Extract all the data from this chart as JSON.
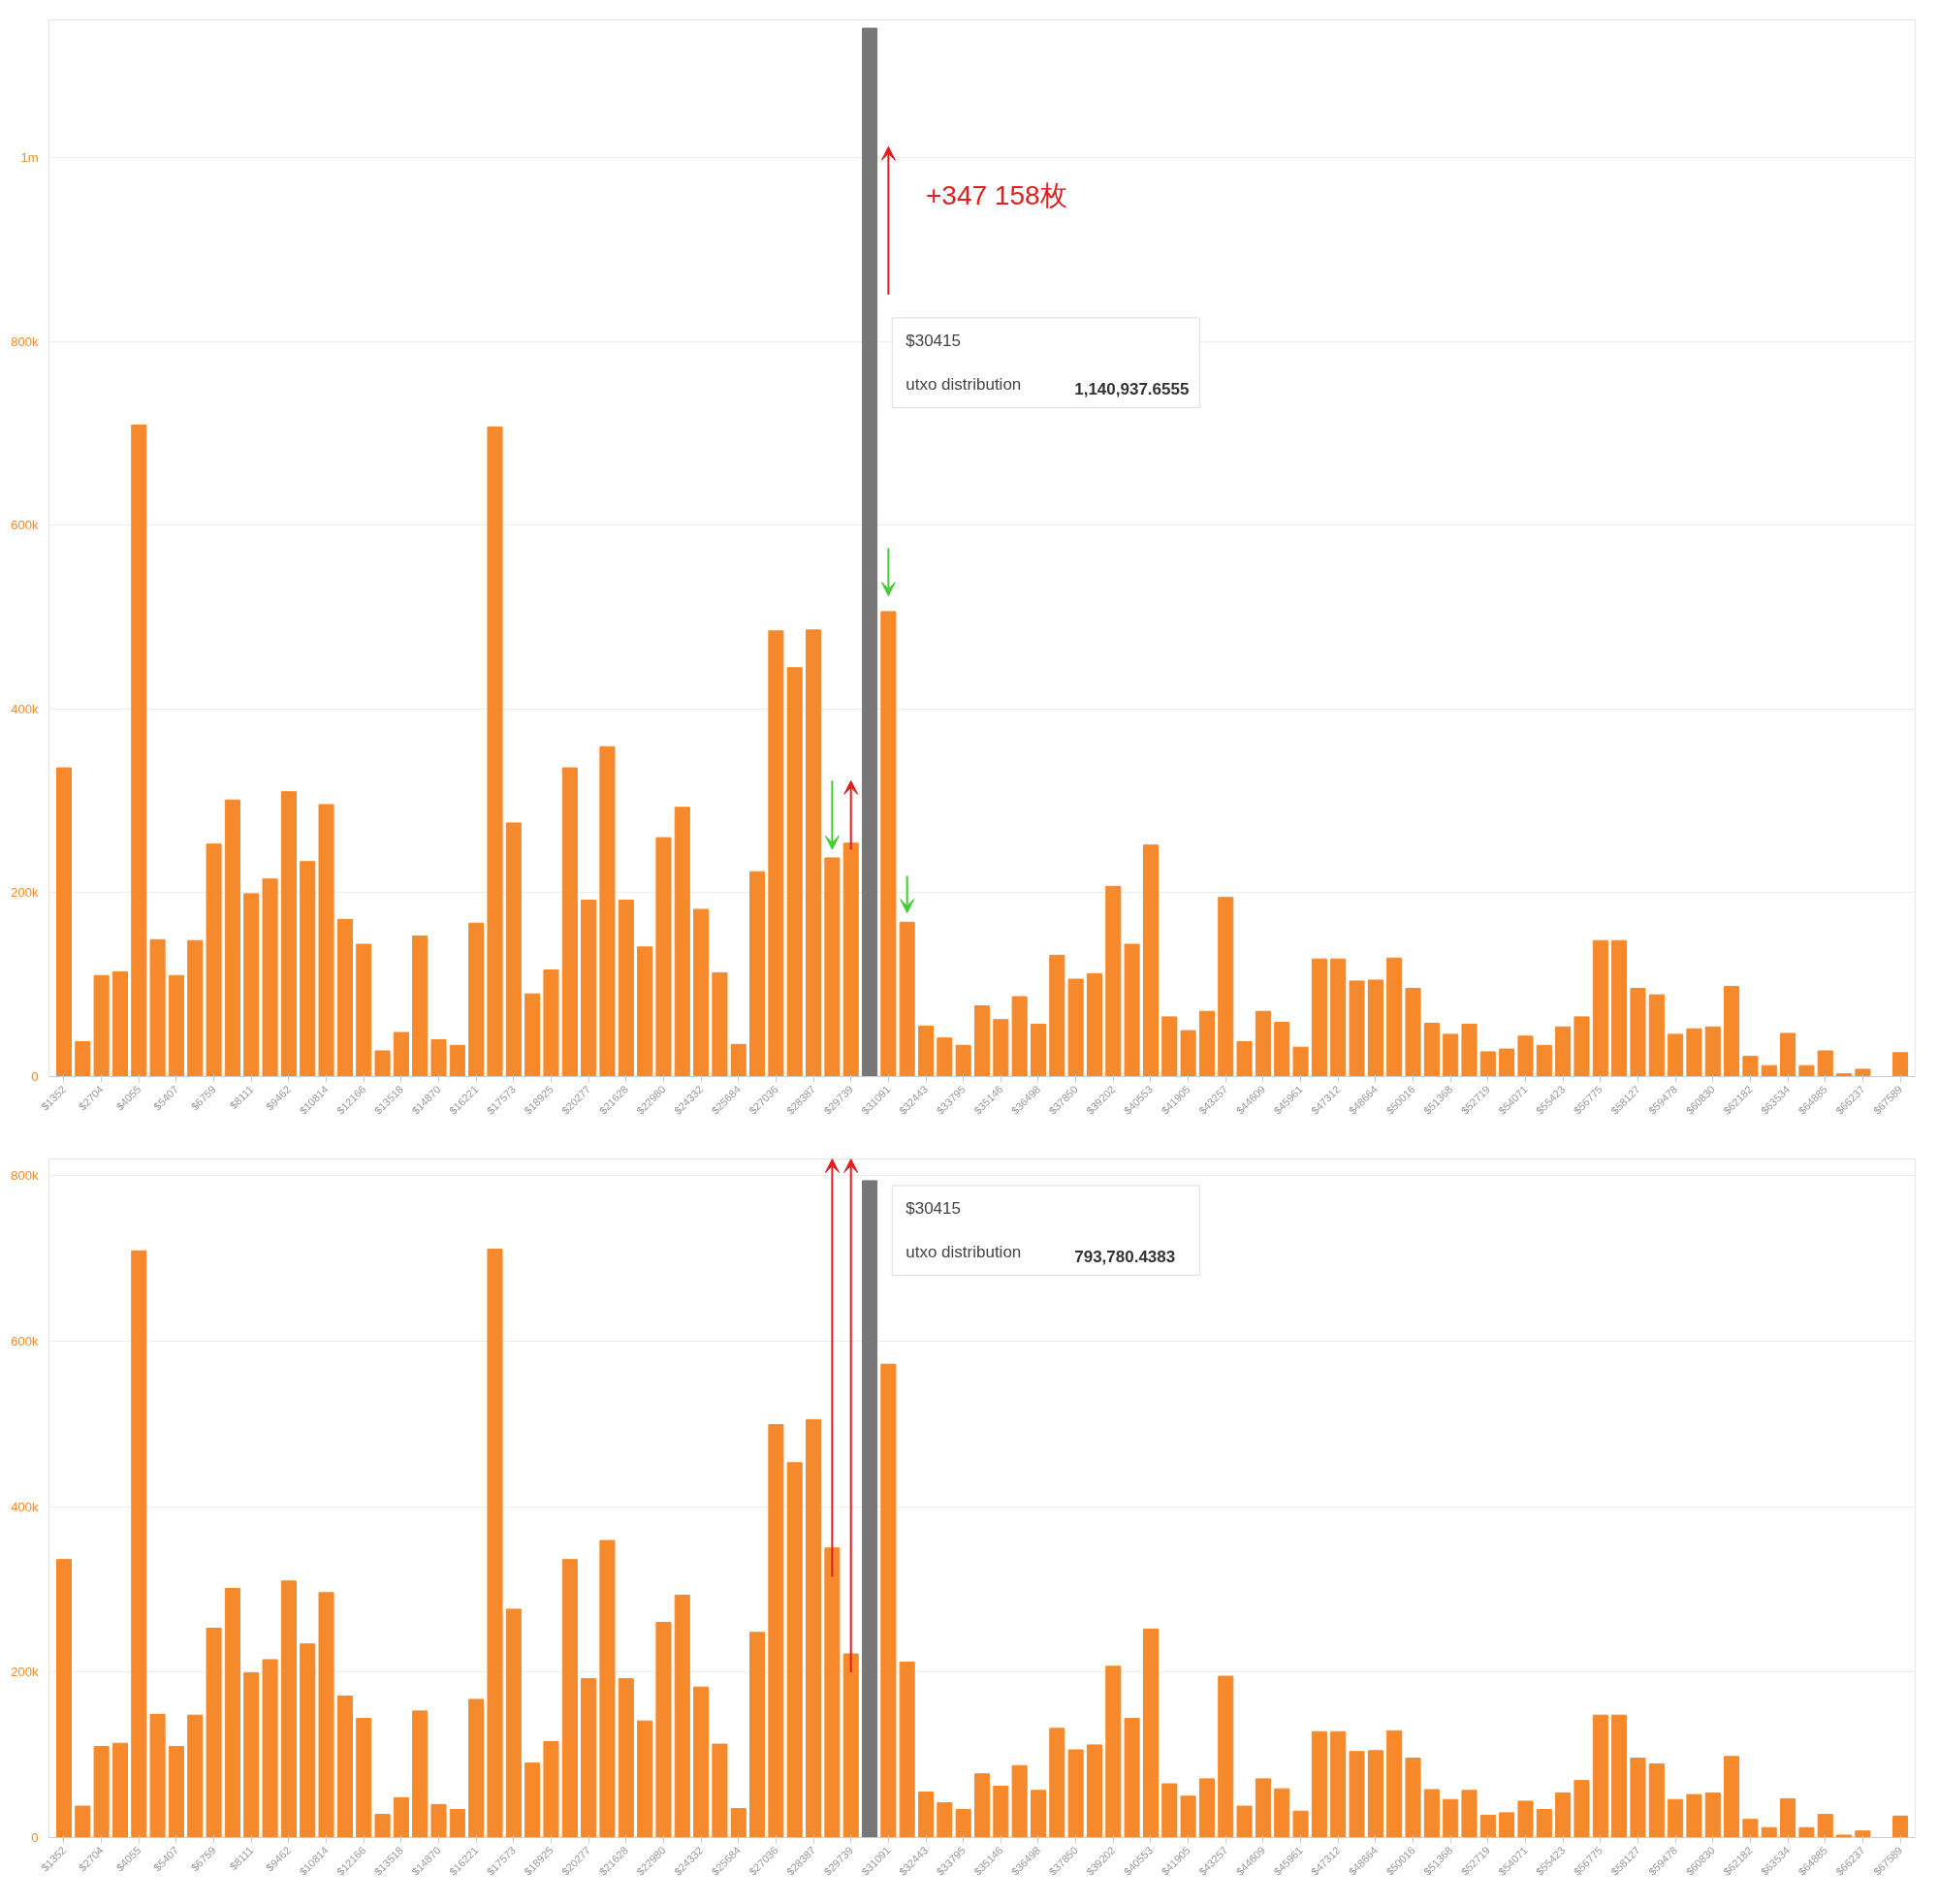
{
  "chart_data": [
    {
      "type": "bar",
      "categories": [
        "$1352",
        null,
        "$2704",
        null,
        "$4055",
        null,
        "$5407",
        null,
        "$6759",
        null,
        "$8111",
        null,
        "$9462",
        null,
        "$10814",
        null,
        "$12166",
        null,
        "$13518",
        null,
        "$14870",
        null,
        "$16221",
        null,
        "$17573",
        null,
        "$18925",
        null,
        "$20277",
        null,
        "$21628",
        null,
        "$22980",
        null,
        "$24332",
        null,
        "$25684",
        null,
        "$27036",
        null,
        "$28387",
        null,
        "$29739",
        null,
        "$31091",
        null,
        "$32443",
        null,
        "$33795",
        null,
        "$35146",
        null,
        "$36498",
        null,
        "$37850",
        null,
        "$39202",
        null,
        "$40553",
        null,
        "$41905",
        null,
        "$43257",
        null,
        "$44609",
        null,
        "$45961",
        null,
        "$47312",
        null,
        "$48664",
        null,
        "$50016",
        null,
        "$51368",
        null,
        "$52719",
        null,
        "$54071",
        null,
        "$55423",
        null,
        "$56775",
        null,
        "$58127",
        null,
        "$59478",
        null,
        "$60830",
        null,
        "$62182",
        null,
        "$63534",
        null,
        "$64885",
        null,
        "$66237",
        null,
        "$67589"
      ],
      "values": [
        336000,
        38000,
        110000,
        114000,
        709000,
        149000,
        110000,
        148000,
        253000,
        301000,
        199000,
        215000,
        310000,
        234000,
        296000,
        171000,
        144000,
        28000,
        48000,
        153000,
        40000,
        34000,
        167000,
        707000,
        276000,
        90000,
        116000,
        336000,
        192000,
        359000,
        192000,
        141000,
        260000,
        293000,
        182000,
        113000,
        35000,
        223000,
        485000,
        445000,
        486000,
        238000,
        254000,
        1140937.6555,
        506000,
        168000,
        55000,
        42000,
        34000,
        77000,
        62000,
        87000,
        57000,
        132000,
        106000,
        112000,
        207000,
        144000,
        252000,
        65000,
        50000,
        71000,
        195000,
        38000,
        71000,
        59000,
        32000,
        128000,
        128000,
        104000,
        105000,
        129000,
        96000,
        58000,
        46000,
        57000,
        27000,
        30000,
        44000,
        34000,
        54000,
        65000,
        148000,
        148000,
        96000,
        89000,
        46000,
        52000,
        54000,
        98000,
        22000,
        12000,
        47000,
        12000,
        28000,
        3000,
        8000,
        0,
        26000
      ],
      "colors": [
        "#f5892b",
        "#f5892b",
        "#f5892b",
        "#f5892b",
        "#f5892b",
        "#f5892b",
        "#f5892b",
        "#f5892b",
        "#f5892b",
        "#f5892b",
        "#f5892b",
        "#f5892b",
        "#f5892b",
        "#f5892b",
        "#f5892b",
        "#f5892b",
        "#f5892b",
        "#f5892b",
        "#f5892b",
        "#f5892b",
        "#f5892b",
        "#f5892b",
        "#f5892b",
        "#f5892b",
        "#f5892b",
        "#f5892b",
        "#f5892b",
        "#f5892b",
        "#f5892b",
        "#f5892b",
        "#f5892b",
        "#f5892b",
        "#f5892b",
        "#f5892b",
        "#f5892b",
        "#f5892b",
        "#f5892b",
        "#f5892b",
        "#f5892b",
        "#f5892b",
        "#f5892b",
        "#f5892b",
        "#f5892b",
        "#777777",
        "#f5892b",
        "#f5892b",
        "#f5892b",
        "#f5892b",
        "#f5892b",
        "#f5892b",
        "#f5892b",
        "#f5892b",
        "#f5892b",
        "#f5892b",
        "#f5892b",
        "#f5892b",
        "#f5892b",
        "#f5892b",
        "#f5892b",
        "#f5892b",
        "#f5892b",
        "#f5892b",
        "#f5892b",
        "#f5892b",
        "#f5892b",
        "#f5892b",
        "#f5892b",
        "#f5892b",
        "#f5892b",
        "#f5892b",
        "#f5892b",
        "#f5892b",
        "#f5892b",
        "#f5892b",
        "#f5892b",
        "#f5892b",
        "#f5892b",
        "#f5892b",
        "#f5892b",
        "#f5892b",
        "#f5892b",
        "#f5892b",
        "#f5892b",
        "#f5892b",
        "#f5892b",
        "#f5892b",
        "#f5892b",
        "#f5892b",
        "#f5892b",
        "#f5892b",
        "#f5892b",
        "#f5892b",
        "#f5892b",
        "#f5892b",
        "#f5892b",
        "#f5892b",
        "#f5892b",
        "#f5892b",
        "#f5892b"
      ],
      "ylim": [
        0,
        1150000
      ],
      "yticks": [
        0,
        {
          "value": 200000,
          "label": "200k"
        },
        {
          "value": 400000,
          "label": "400k"
        },
        {
          "value": 600000,
          "label": "600k"
        },
        {
          "value": 800000,
          "label": "800k"
        },
        {
          "value": 1000000,
          "label": "1m"
        }
      ],
      "grid": "y",
      "annotations": [
        "+347 158枚",
        "$30415",
        "utxo distribution",
        "1,140,937.6555"
      ]
    },
    {
      "type": "bar",
      "categories": [
        "$1352",
        null,
        "$2704",
        null,
        "$4055",
        null,
        "$5407",
        null,
        "$6759",
        null,
        "$8111",
        null,
        "$9462",
        null,
        "$10814",
        null,
        "$12166",
        null,
        "$13518",
        null,
        "$14870",
        null,
        "$16221",
        null,
        "$17573",
        null,
        "$18925",
        null,
        "$20277",
        null,
        "$21628",
        null,
        "$22980",
        null,
        "$24332",
        null,
        "$25684",
        null,
        "$27036",
        null,
        "$28387",
        null,
        "$29739",
        null,
        "$31091",
        null,
        "$32443",
        null,
        "$33795",
        null,
        "$35146",
        null,
        "$36498",
        null,
        "$37850",
        null,
        "$39202",
        null,
        "$40553",
        null,
        "$41905",
        null,
        "$43257",
        null,
        "$44609",
        null,
        "$45961",
        null,
        "$47312",
        null,
        "$48664",
        null,
        "$50016",
        null,
        "$51368",
        null,
        "$52719",
        null,
        "$54071",
        null,
        "$55423",
        null,
        "$56775",
        null,
        "$58127",
        null,
        "$59478",
        null,
        "$60830",
        null,
        "$62182",
        null,
        "$63534",
        null,
        "$64885",
        null,
        "$66237",
        null,
        "$67589"
      ],
      "values": [
        336000,
        38000,
        110000,
        114000,
        709000,
        149000,
        110000,
        148000,
        253000,
        301000,
        199000,
        215000,
        310000,
        234000,
        296000,
        171000,
        144000,
        28000,
        48000,
        153000,
        40000,
        34000,
        167000,
        711000,
        276000,
        90000,
        116000,
        336000,
        192000,
        359000,
        192000,
        141000,
        260000,
        293000,
        182000,
        113000,
        35000,
        248000,
        499000,
        453000,
        505000,
        350000,
        222000,
        793780.4383,
        572000,
        212000,
        55000,
        42000,
        34000,
        77000,
        62000,
        87000,
        57000,
        132000,
        106000,
        112000,
        207000,
        144000,
        252000,
        65000,
        50000,
        71000,
        195000,
        38000,
        71000,
        59000,
        32000,
        128000,
        128000,
        104000,
        105000,
        129000,
        96000,
        58000,
        46000,
        57000,
        27000,
        30000,
        44000,
        34000,
        54000,
        69000,
        148000,
        148000,
        96000,
        89000,
        46000,
        52000,
        54000,
        98000,
        22000,
        12000,
        47000,
        12000,
        28000,
        3000,
        8000,
        0,
        26000
      ],
      "colors": [
        "#f5892b",
        "#f5892b",
        "#f5892b",
        "#f5892b",
        "#f5892b",
        "#f5892b",
        "#f5892b",
        "#f5892b",
        "#f5892b",
        "#f5892b",
        "#f5892b",
        "#f5892b",
        "#f5892b",
        "#f5892b",
        "#f5892b",
        "#f5892b",
        "#f5892b",
        "#f5892b",
        "#f5892b",
        "#f5892b",
        "#f5892b",
        "#f5892b",
        "#f5892b",
        "#f5892b",
        "#f5892b",
        "#f5892b",
        "#f5892b",
        "#f5892b",
        "#f5892b",
        "#f5892b",
        "#f5892b",
        "#f5892b",
        "#f5892b",
        "#f5892b",
        "#f5892b",
        "#f5892b",
        "#f5892b",
        "#f5892b",
        "#f5892b",
        "#f5892b",
        "#f5892b",
        "#f5892b",
        "#f5892b",
        "#777777",
        "#f5892b",
        "#f5892b",
        "#f5892b",
        "#f5892b",
        "#f5892b",
        "#f5892b",
        "#f5892b",
        "#f5892b",
        "#f5892b",
        "#f5892b",
        "#f5892b",
        "#f5892b",
        "#f5892b",
        "#f5892b",
        "#f5892b",
        "#f5892b",
        "#f5892b",
        "#f5892b",
        "#f5892b",
        "#f5892b",
        "#f5892b",
        "#f5892b",
        "#f5892b",
        "#f5892b",
        "#f5892b",
        "#f5892b",
        "#f5892b",
        "#f5892b",
        "#f5892b",
        "#f5892b",
        "#f5892b",
        "#f5892b",
        "#f5892b",
        "#f5892b",
        "#f5892b",
        "#f5892b",
        "#f5892b",
        "#f5892b",
        "#f5892b",
        "#f5892b",
        "#f5892b",
        "#f5892b",
        "#f5892b",
        "#f5892b",
        "#f5892b",
        "#f5892b",
        "#f5892b",
        "#f5892b",
        "#f5892b",
        "#f5892b",
        "#f5892b",
        "#f5892b",
        "#f5892b",
        "#f5892b",
        "#f5892b"
      ],
      "ylim": [
        0,
        820000
      ],
      "yticks": [
        0,
        {
          "value": 200000,
          "label": "200k"
        },
        {
          "value": 400000,
          "label": "400k"
        },
        {
          "value": 600000,
          "label": "600k"
        },
        {
          "value": 800000,
          "label": "800k"
        }
      ],
      "grid": "y",
      "annotations": [
        "$30415",
        "utxo distribution",
        "793,780.4383"
      ]
    }
  ]
}
